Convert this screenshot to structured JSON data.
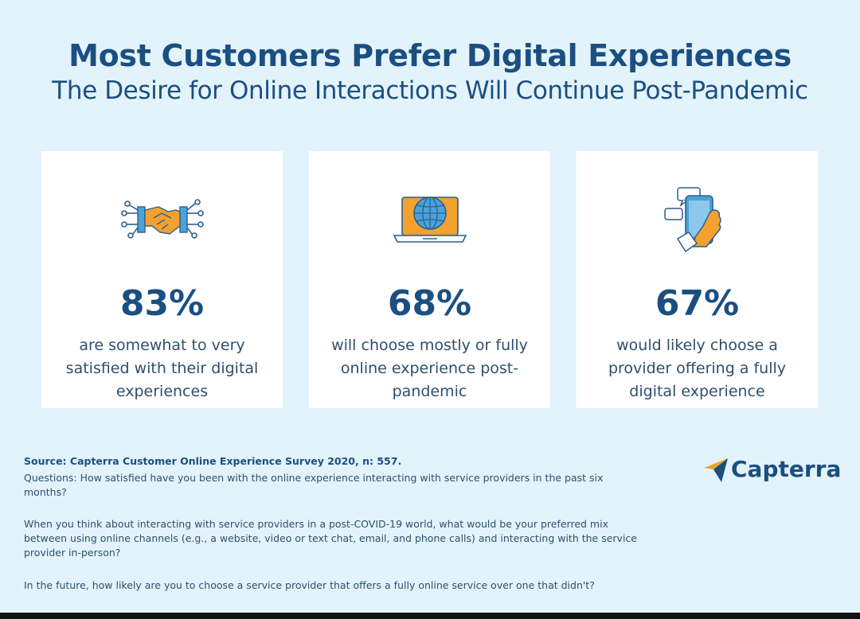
{
  "header": {
    "title": "Most Customers Prefer Digital Experiences",
    "subtitle": "The Desire for Online Interactions Will Continue Post-Pandemic"
  },
  "cards": [
    {
      "icon": "handshake-icon",
      "stat": "83%",
      "description": "are somewhat to very satisfied with their digital experiences"
    },
    {
      "icon": "laptop-globe-icon",
      "stat": "68%",
      "description": "will choose mostly or fully online experience post-pandemic"
    },
    {
      "icon": "smartphone-hand-icon",
      "stat": "67%",
      "description": "would likely choose a provider offering a fully digital experience"
    }
  ],
  "footer": {
    "source": "Source: Capterra Customer Online Experience Survey 2020, n: 557.",
    "question1": "Questions: How satisfied have you been with the online experience interacting with service providers in the past six months?",
    "question2": "When you think about interacting with service providers in a post-COVID-19 world, what would be your preferred mix between using online channels (e.g., a website, video or text chat, email, and phone calls) and interacting with the service provider in-person?",
    "question3": "In the future, how likely are you to choose a service provider that offers a fully online service over one that didn't?",
    "brand": "Capterra"
  },
  "colors": {
    "background": "#e3f3fb",
    "navy": "#1b4f82",
    "orange": "#f4a130",
    "blue": "#4aa3d8"
  }
}
